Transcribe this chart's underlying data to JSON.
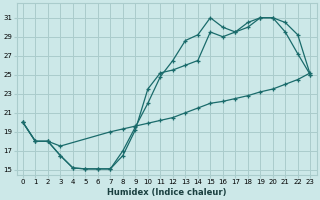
{
  "xlabel": "Humidex (Indice chaleur)",
  "bg_color": "#cce8e8",
  "grid_color": "#aacccc",
  "line_color": "#1a6b6b",
  "xlim": [
    -0.5,
    23.5
  ],
  "ylim": [
    14.5,
    32.5
  ],
  "xticks": [
    0,
    1,
    2,
    3,
    4,
    5,
    6,
    7,
    8,
    9,
    10,
    11,
    12,
    13,
    14,
    15,
    16,
    17,
    18,
    19,
    20,
    21,
    22,
    23
  ],
  "yticks": [
    15,
    17,
    19,
    21,
    23,
    25,
    27,
    29,
    31
  ],
  "line1_x": [
    0,
    1,
    2,
    3,
    4,
    5,
    6,
    7,
    8,
    9,
    10,
    11,
    12,
    13,
    14,
    15,
    16,
    17,
    18,
    19,
    20,
    21,
    22,
    23
  ],
  "line1_y": [
    20,
    18,
    18,
    16.5,
    15.2,
    15.1,
    15.1,
    15.1,
    17.0,
    19.5,
    22.0,
    24.8,
    26.5,
    28.6,
    29.2,
    31.0,
    30.0,
    29.5,
    30.0,
    31.0,
    31.0,
    29.5,
    27.2,
    25.0
  ],
  "line2_x": [
    0,
    1,
    2,
    3,
    4,
    5,
    6,
    7,
    8,
    9,
    10,
    11,
    12,
    13,
    14,
    15,
    16,
    17,
    18,
    19,
    20,
    21,
    22,
    23
  ],
  "line2_y": [
    20,
    18,
    18,
    16.5,
    15.2,
    15.1,
    15.1,
    15.1,
    16.5,
    19.2,
    23.5,
    25.2,
    25.5,
    26.0,
    26.5,
    29.5,
    29.0,
    29.5,
    30.5,
    31.0,
    31.0,
    30.5,
    29.2,
    25.0
  ],
  "line3_x": [
    0,
    1,
    2,
    3,
    7,
    8,
    9,
    10,
    11,
    12,
    13,
    14,
    15,
    16,
    17,
    18,
    19,
    20,
    21,
    22,
    23
  ],
  "line3_y": [
    20,
    18,
    18,
    17.5,
    19.0,
    19.3,
    19.6,
    19.9,
    20.2,
    20.5,
    21.0,
    21.5,
    22.0,
    22.2,
    22.5,
    22.8,
    23.2,
    23.5,
    24.0,
    24.5,
    25.2
  ]
}
